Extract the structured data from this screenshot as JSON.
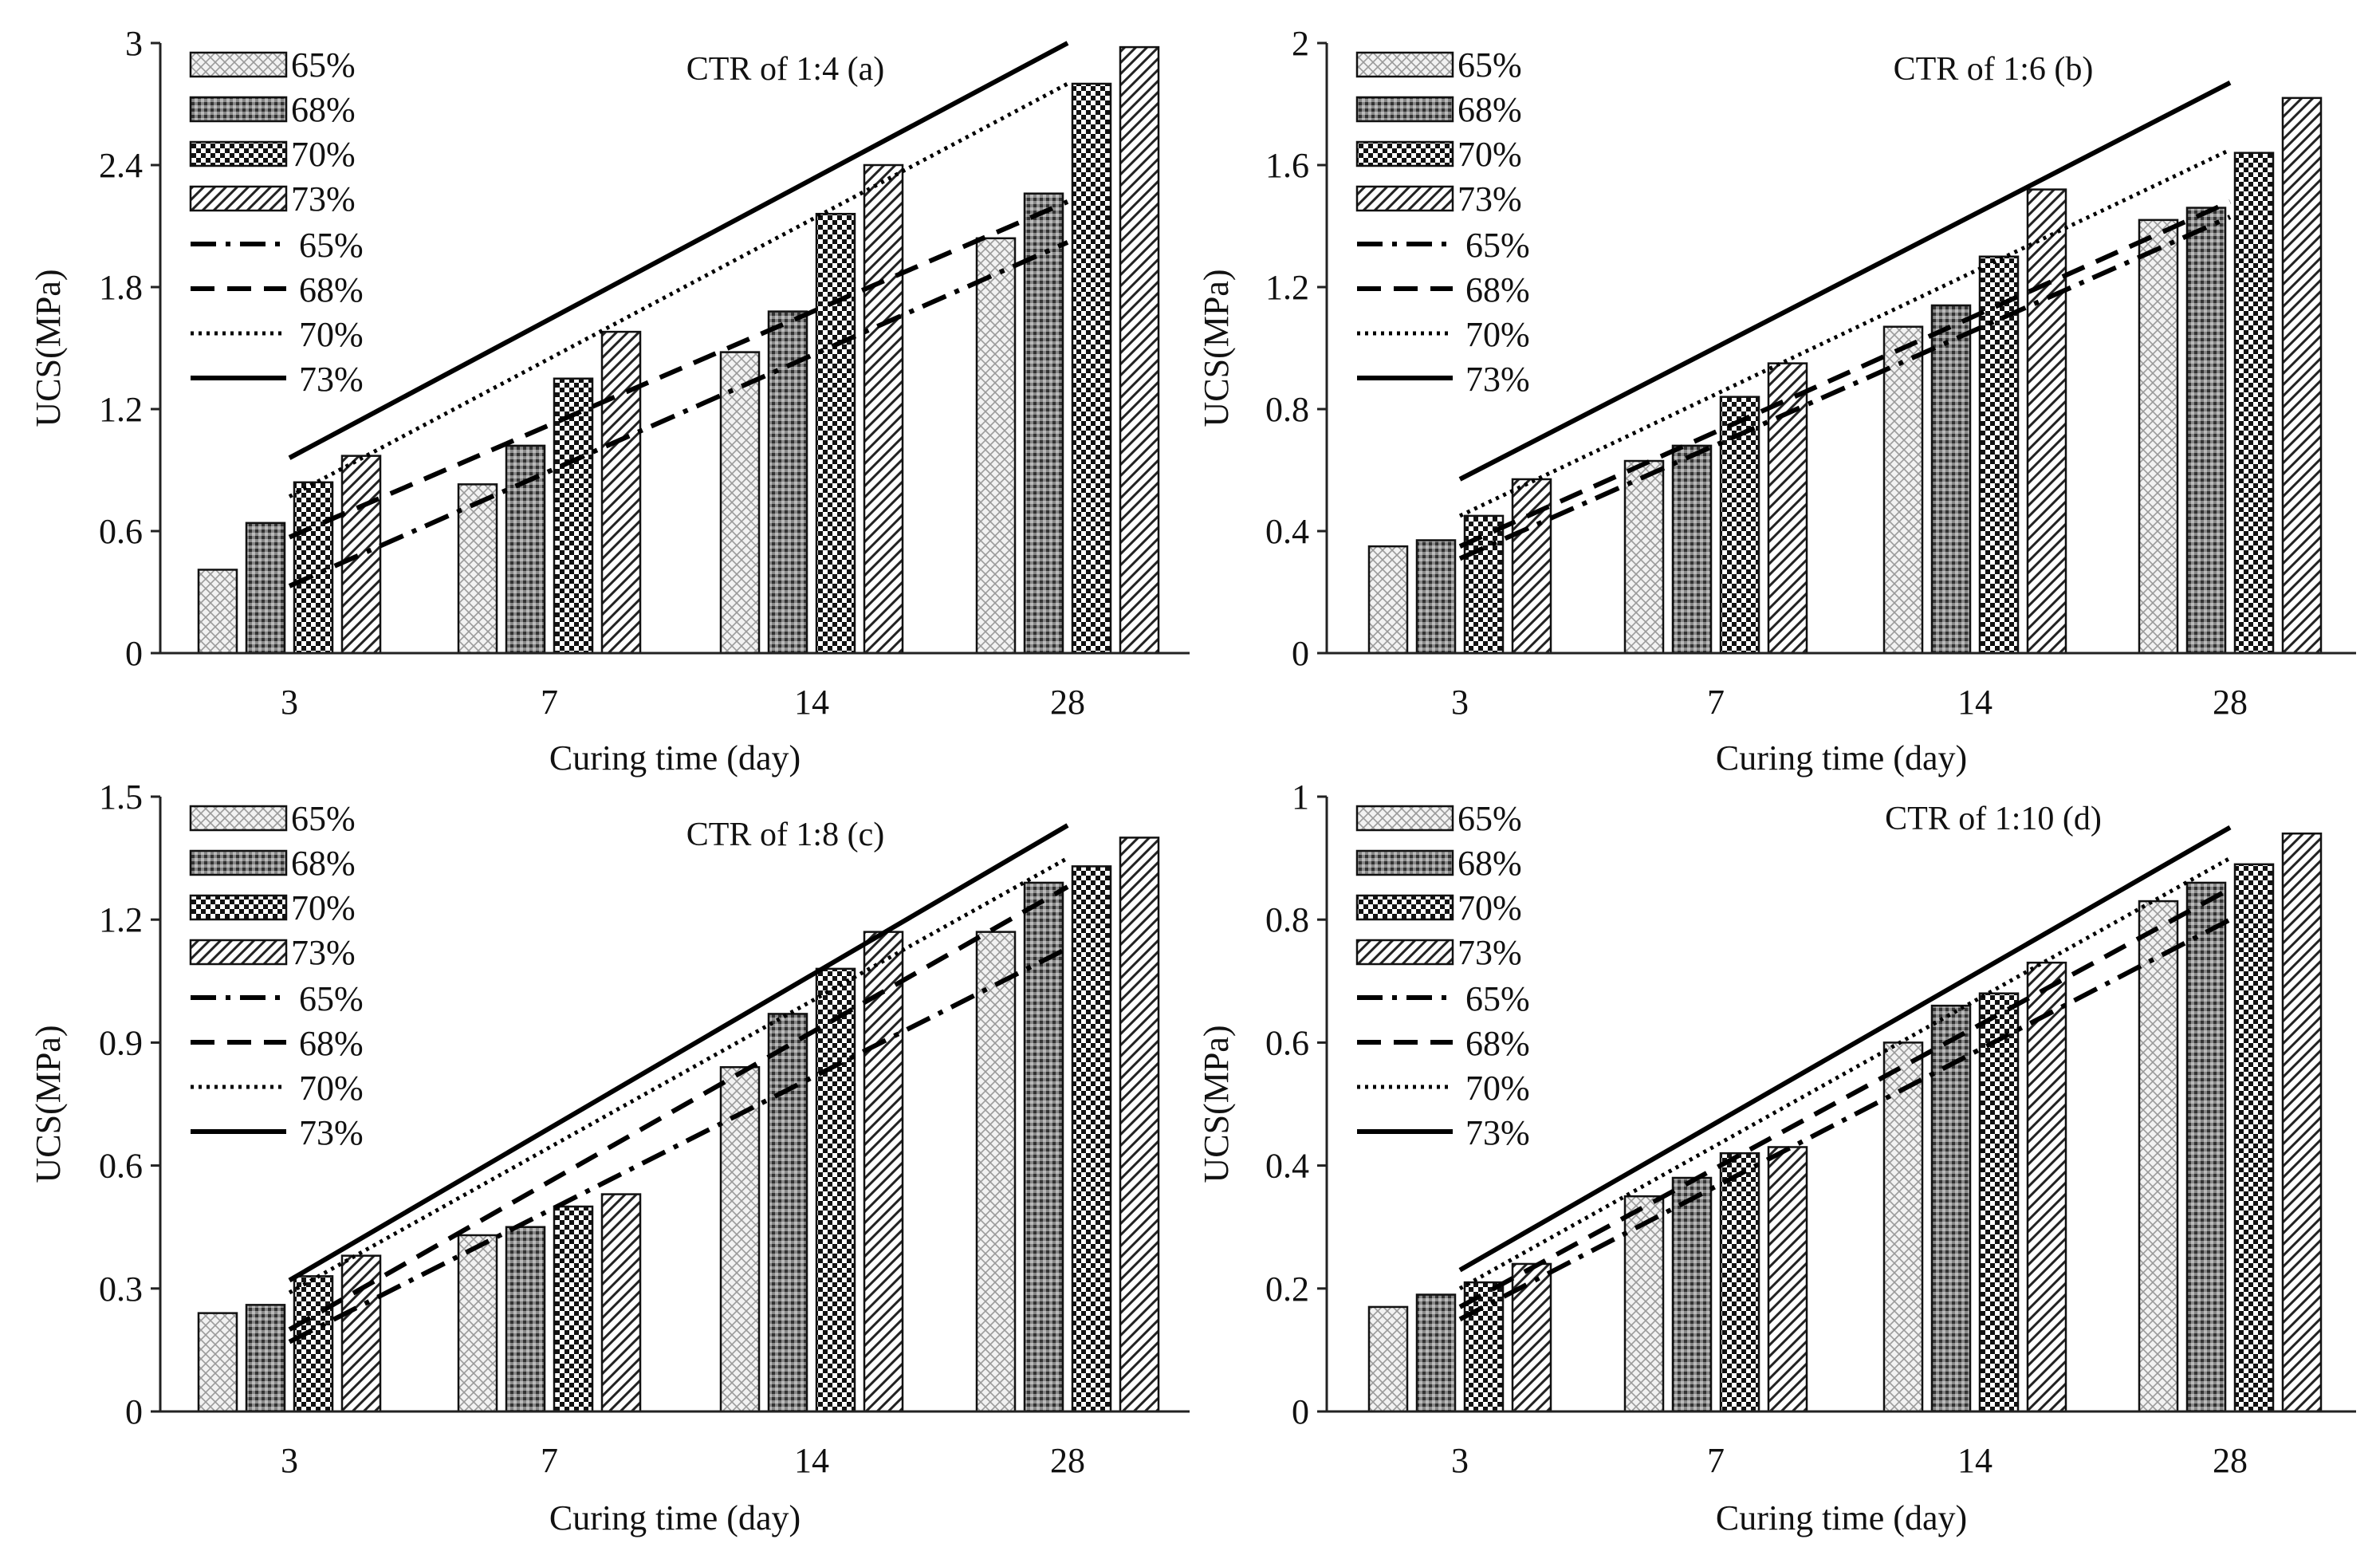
{
  "chart_data": [
    {
      "type": "bar",
      "title": "CTR of 1:4   (a)",
      "xlabel": "Curing time (day)",
      "ylabel": "UCS(MPa)",
      "ylim": [
        0,
        3
      ],
      "yticks": [
        "0",
        "0.6",
        "1.2",
        "1.8",
        "2.4",
        "3"
      ],
      "categories": [
        "3",
        "7",
        "14",
        "28"
      ],
      "series": [
        {
          "name": "65%",
          "values": [
            0.41,
            0.83,
            1.48,
            2.04
          ]
        },
        {
          "name": "68%",
          "values": [
            0.64,
            1.02,
            1.68,
            2.26
          ]
        },
        {
          "name": "70%",
          "values": [
            0.84,
            1.35,
            2.16,
            2.8
          ]
        },
        {
          "name": "73%",
          "values": [
            0.97,
            1.58,
            2.4,
            2.98
          ]
        }
      ],
      "trendlines": [
        {
          "name": "65%",
          "style": "dash-dot",
          "start": 0.33,
          "end": 2.02
        },
        {
          "name": "68%",
          "style": "dashed",
          "start": 0.57,
          "end": 2.22
        },
        {
          "name": "70%",
          "style": "dotted",
          "start": 0.77,
          "end": 2.8
        },
        {
          "name": "73%",
          "style": "solid",
          "start": 0.96,
          "end": 3.0
        }
      ],
      "legend": "top-left"
    },
    {
      "type": "bar",
      "title": "CTR of 1:6   (b)",
      "xlabel": "Curing time (day)",
      "ylabel": "UCS(MPa)",
      "ylim": [
        0,
        2
      ],
      "yticks": [
        "0",
        "0.4",
        "0.8",
        "1.2",
        "1.6",
        "2"
      ],
      "categories": [
        "3",
        "7",
        "14",
        "28"
      ],
      "series": [
        {
          "name": "65%",
          "values": [
            0.35,
            0.63,
            1.07,
            1.42
          ]
        },
        {
          "name": "68%",
          "values": [
            0.37,
            0.68,
            1.14,
            1.46
          ]
        },
        {
          "name": "70%",
          "values": [
            0.45,
            0.84,
            1.3,
            1.64
          ]
        },
        {
          "name": "73%",
          "values": [
            0.57,
            0.95,
            1.52,
            1.82
          ]
        }
      ],
      "trendlines": [
        {
          "name": "65%",
          "style": "dash-dot",
          "start": 0.31,
          "end": 1.43
        },
        {
          "name": "68%",
          "style": "dashed",
          "start": 0.35,
          "end": 1.48
        },
        {
          "name": "70%",
          "style": "dotted",
          "start": 0.45,
          "end": 1.65
        },
        {
          "name": "73%",
          "style": "solid",
          "start": 0.57,
          "end": 1.87
        }
      ],
      "legend": "top-left"
    },
    {
      "type": "bar",
      "title": "CTR of 1:8   (c)",
      "xlabel": "Curing time (day)",
      "ylabel": "UCS(MPa)",
      "ylim": [
        0,
        1.5
      ],
      "yticks": [
        "0",
        "0.3",
        "0.6",
        "0.9",
        "1.2",
        "1.5"
      ],
      "categories": [
        "3",
        "7",
        "14",
        "28"
      ],
      "series": [
        {
          "name": "65%",
          "values": [
            0.24,
            0.43,
            0.84,
            1.17
          ]
        },
        {
          "name": "68%",
          "values": [
            0.26,
            0.45,
            0.97,
            1.29
          ]
        },
        {
          "name": "70%",
          "values": [
            0.33,
            0.5,
            1.08,
            1.33
          ]
        },
        {
          "name": "73%",
          "values": [
            0.38,
            0.53,
            1.17,
            1.4
          ]
        }
      ],
      "trendlines": [
        {
          "name": "65%",
          "style": "dash-dot",
          "start": 0.17,
          "end": 1.13
        },
        {
          "name": "68%",
          "style": "dashed",
          "start": 0.2,
          "end": 1.28
        },
        {
          "name": "70%",
          "style": "dotted",
          "start": 0.29,
          "end": 1.35
        },
        {
          "name": "73%",
          "style": "solid",
          "start": 0.32,
          "end": 1.43
        }
      ],
      "legend": "top-left"
    },
    {
      "type": "bar",
      "title": "CTR of 1:10   (d)",
      "xlabel": "Curing time (day)",
      "ylabel": "UCS(MPa)",
      "ylim": [
        0,
        1
      ],
      "yticks": [
        "0",
        "0.2",
        "0.4",
        "0.6",
        "0.8",
        "1"
      ],
      "categories": [
        "3",
        "7",
        "14",
        "28"
      ],
      "series": [
        {
          "name": "65%",
          "values": [
            0.17,
            0.35,
            0.6,
            0.83
          ]
        },
        {
          "name": "68%",
          "values": [
            0.19,
            0.38,
            0.66,
            0.86
          ]
        },
        {
          "name": "70%",
          "values": [
            0.21,
            0.42,
            0.68,
            0.89
          ]
        },
        {
          "name": "73%",
          "values": [
            0.24,
            0.43,
            0.73,
            0.94
          ]
        }
      ],
      "trendlines": [
        {
          "name": "65%",
          "style": "dash-dot",
          "start": 0.15,
          "end": 0.8
        },
        {
          "name": "68%",
          "style": "dashed",
          "start": 0.17,
          "end": 0.85
        },
        {
          "name": "70%",
          "style": "dotted",
          "start": 0.2,
          "end": 0.9
        },
        {
          "name": "73%",
          "style": "solid",
          "start": 0.23,
          "end": 0.95
        }
      ],
      "legend": "top-left"
    }
  ]
}
